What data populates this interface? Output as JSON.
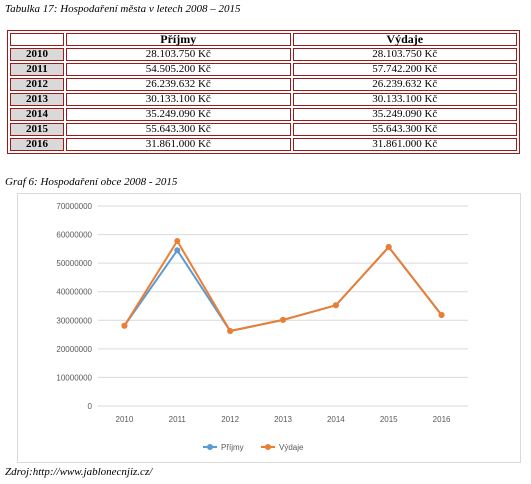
{
  "table_caption": "Tabulka 17: Hospodaření města v letech 2008 – 2015",
  "table": {
    "headers": [
      "",
      "Příjmy",
      "Výdaje"
    ],
    "rows": [
      {
        "year": "2010",
        "income": "28.103.750 Kč",
        "expense": "28.103.750 Kč"
      },
      {
        "year": "2011",
        "income": "54.505.200 Kč",
        "expense": "57.742.200 Kč"
      },
      {
        "year": "2012",
        "income": "26.239.632 Kč",
        "expense": "26.239.632 Kč"
      },
      {
        "year": "2013",
        "income": "30.133.100 Kč",
        "expense": "30.133.100 Kč"
      },
      {
        "year": "2014",
        "income": "35.249.090 Kč",
        "expense": "35.249.090 Kč"
      },
      {
        "year": "2015",
        "income": "55.643.300 Kč",
        "expense": "55.643.300 Kč"
      },
      {
        "year": "2016",
        "income": "31.861.000 Kč",
        "expense": "31.861.000 Kč"
      }
    ]
  },
  "graph_caption": "Graf 6: Hospodaření obce 2008 - 2015",
  "source": "Zdroj:http://www.jablonecnjiz.cz/",
  "chart_data": {
    "type": "line",
    "categories": [
      "2010",
      "2011",
      "2012",
      "2013",
      "2014",
      "2015",
      "2016"
    ],
    "series": [
      {
        "name": "Příjmy",
        "color": "#5b9bd5",
        "values": [
          28103750,
          54505200,
          26239632,
          30133100,
          35249090,
          55643300,
          31861000
        ]
      },
      {
        "name": "Výdaje",
        "color": "#ed7d31",
        "values": [
          28103750,
          57742200,
          26239632,
          30133100,
          35249090,
          55643300,
          31861000
        ]
      }
    ],
    "ylim": [
      0,
      70000000
    ],
    "yticks": [
      "0",
      "10000000",
      "20000000",
      "30000000",
      "40000000",
      "50000000",
      "60000000",
      "70000000"
    ],
    "legend": "bottom",
    "grid": true
  }
}
